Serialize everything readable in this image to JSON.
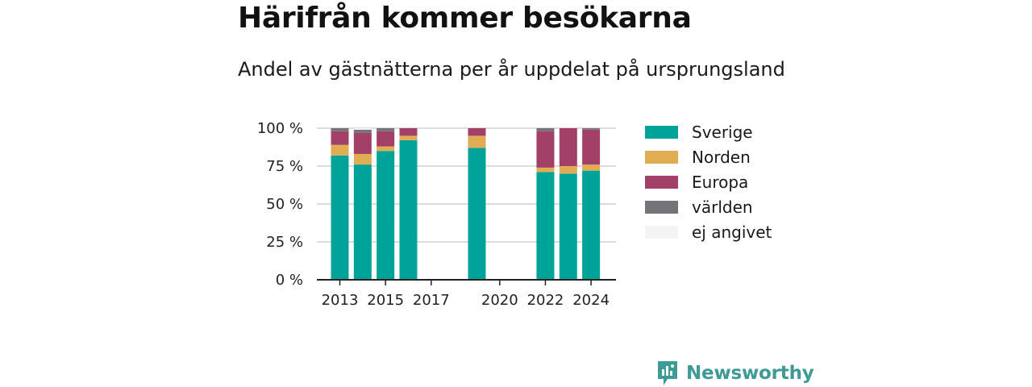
{
  "chart_data": {
    "type": "bar",
    "stacked": true,
    "title": "Härifrån kommer besökarna",
    "subtitle": "Andel av gästnätterna per år uppdelat på ursprungsland",
    "xlabel": "",
    "ylabel": "",
    "ylim": [
      0,
      100
    ],
    "y_ticks": [
      0,
      25,
      50,
      75,
      100
    ],
    "y_tick_labels": [
      "0 %",
      "25 %",
      "50 %",
      "75 %",
      "100 %"
    ],
    "x_ticks": [
      2013,
      2015,
      2017,
      2020,
      2022,
      2024
    ],
    "grid": true,
    "legend_position": "right",
    "categories": [
      2013,
      2014,
      2015,
      2016,
      2017,
      2018,
      2019,
      2020,
      2021,
      2022,
      2023,
      2024
    ],
    "series": [
      {
        "name": "Sverige",
        "color": "#00a398",
        "values": [
          82,
          76,
          85,
          92,
          null,
          null,
          87,
          null,
          null,
          71,
          70,
          72
        ]
      },
      {
        "name": "Norden",
        "color": "#e0ad55",
        "values": [
          7,
          7,
          3,
          3,
          null,
          null,
          8,
          null,
          null,
          3,
          5,
          4
        ]
      },
      {
        "name": "Europa",
        "color": "#a3406a",
        "values": [
          9,
          14,
          10,
          5,
          null,
          null,
          5,
          null,
          null,
          24,
          25,
          23
        ]
      },
      {
        "name": "världen",
        "color": "#737378",
        "values": [
          2,
          2,
          2,
          0,
          null,
          null,
          0,
          null,
          null,
          2,
          0,
          1
        ]
      },
      {
        "name": "ej angivet",
        "color": "#f3f3f3",
        "values": [
          0,
          1,
          0,
          0,
          null,
          null,
          0,
          null,
          null,
          0,
          0,
          0
        ]
      }
    ]
  },
  "branding": {
    "logo_text": "Newsworthy",
    "logo_icon": "newsworthy-logo-icon",
    "logo_color": "#3d9a94"
  }
}
